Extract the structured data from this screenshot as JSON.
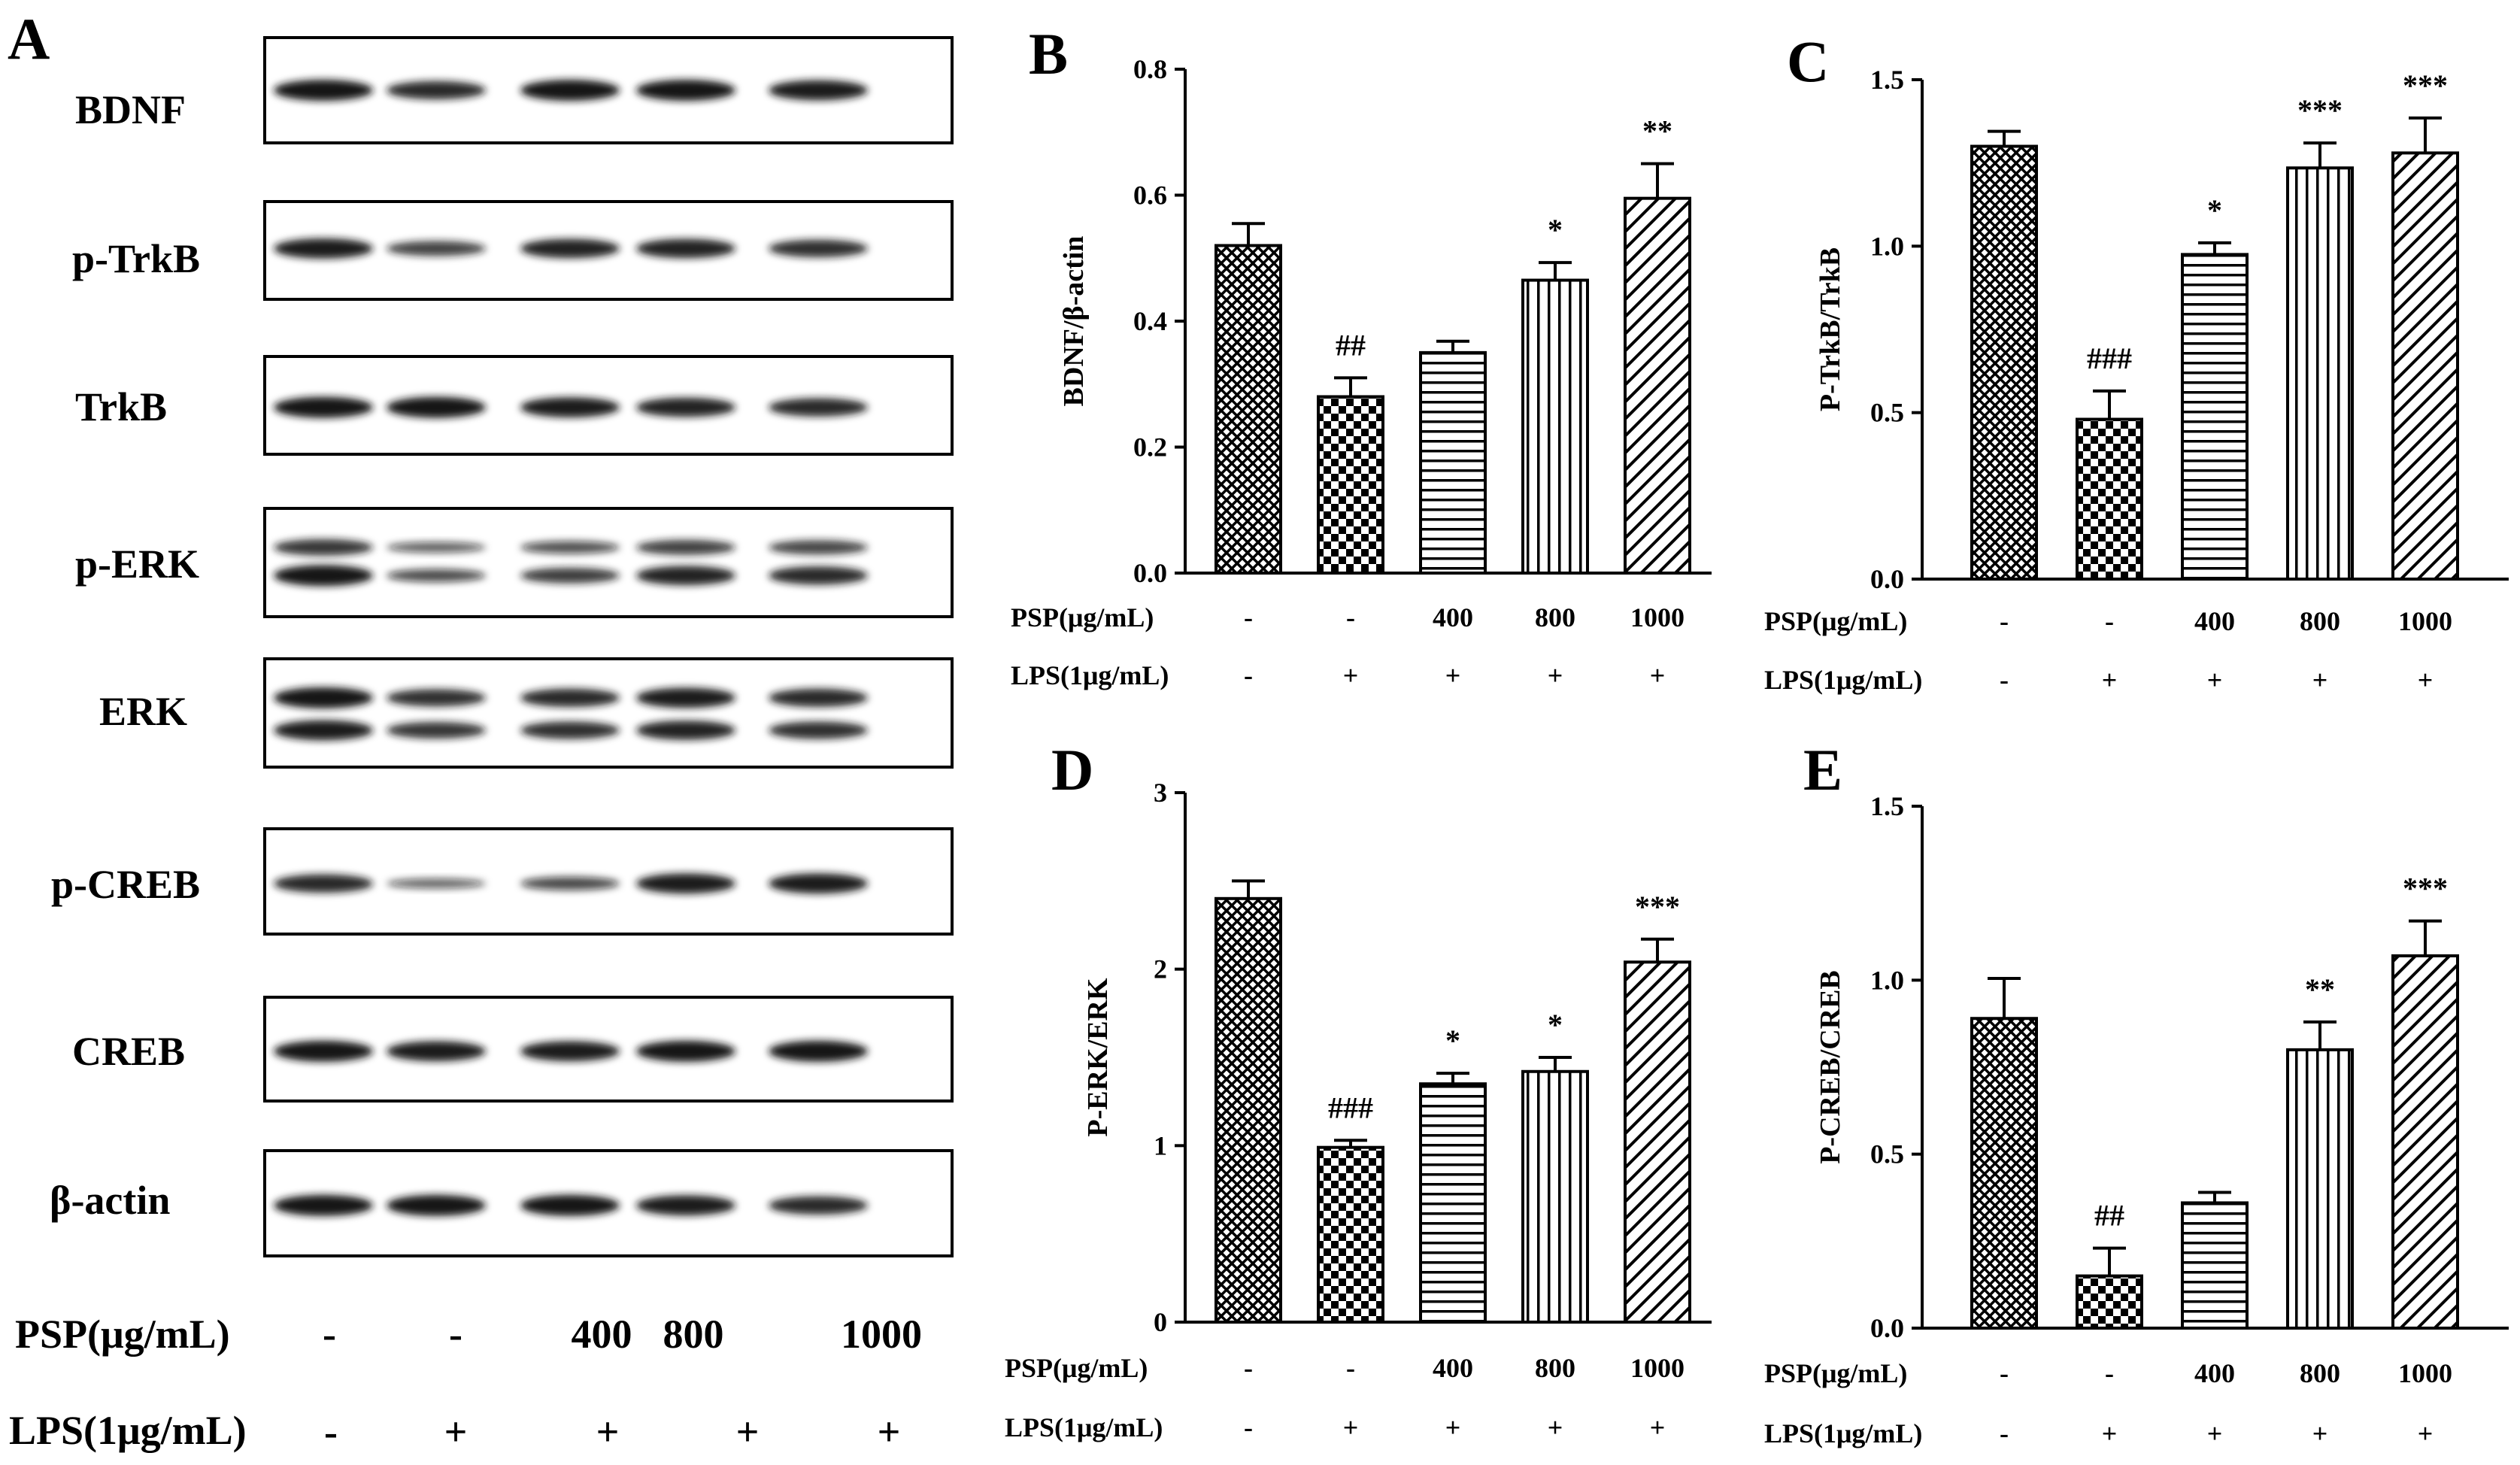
{
  "panel_a": {
    "letter": "A",
    "bands": [
      "BDNF",
      "p-TrkB",
      "TrkB",
      "p-ERK",
      "ERK",
      "p-CREB",
      "CREB",
      "β-actin"
    ],
    "psp_label": "PSP(μg/mL)",
    "lps_label": "LPS(1μg/mL)",
    "psp_values": [
      "-",
      "-",
      "400",
      "800",
      "1000"
    ],
    "lps_values": [
      "-",
      "+",
      "+",
      "+",
      "+"
    ]
  },
  "colors": {
    "ink": "#000000",
    "band": "#151515",
    "background": "#ffffff"
  },
  "chart_data": [
    {
      "panel": "B",
      "type": "bar",
      "ylabel": "BDNF/β-actin",
      "ylim": [
        0,
        0.8
      ],
      "yticks": [
        "0.0",
        "0.2",
        "0.4",
        "0.6",
        "0.8"
      ],
      "tick_values": [
        0,
        0.2,
        0.4,
        0.6,
        0.8
      ],
      "values": [
        0.52,
        0.28,
        0.35,
        0.465,
        0.595
      ],
      "errors": [
        0.035,
        0.03,
        0.018,
        0.028,
        0.055
      ],
      "significance": [
        "",
        "##",
        "",
        "*",
        "**"
      ],
      "patterns": [
        "cross",
        "checker",
        "hlines",
        "vlines",
        "diag"
      ],
      "psp_label": "PSP(μg/mL)",
      "lps_label": "LPS(1μg/mL)",
      "psp_values": [
        "-",
        "-",
        "400",
        "800",
        "1000"
      ],
      "lps_values": [
        "-",
        "+",
        "+",
        "+",
        "+"
      ]
    },
    {
      "panel": "C",
      "type": "bar",
      "ylabel": "P-TrkB/TrkB",
      "ylim": [
        0,
        1.5
      ],
      "yticks": [
        "0.0",
        "0.5",
        "1.0",
        "1.5"
      ],
      "tick_values": [
        0,
        0.5,
        1.0,
        1.5
      ],
      "values": [
        1.3,
        0.48,
        0.975,
        1.235,
        1.28
      ],
      "errors": [
        0.045,
        0.085,
        0.035,
        0.075,
        0.105
      ],
      "significance": [
        "",
        "###",
        "*",
        "***",
        "***"
      ],
      "patterns": [
        "cross",
        "checker",
        "hlines",
        "vlines",
        "diag"
      ],
      "psp_label": "PSP(μg/mL)",
      "lps_label": "LPS(1μg/mL)",
      "psp_values": [
        "-",
        "-",
        "400",
        "800",
        "1000"
      ],
      "lps_values": [
        "-",
        "+",
        "+",
        "+",
        "+"
      ]
    },
    {
      "panel": "D",
      "type": "bar",
      "ylabel": "P-ERK/ERK",
      "ylim": [
        0,
        3
      ],
      "yticks": [
        "0",
        "1",
        "2",
        "3"
      ],
      "tick_values": [
        0,
        1,
        2,
        3
      ],
      "values": [
        2.4,
        0.99,
        1.35,
        1.42,
        2.04
      ],
      "errors": [
        0.1,
        0.04,
        0.06,
        0.08,
        0.13
      ],
      "significance": [
        "",
        "###",
        "*",
        "*",
        "***"
      ],
      "patterns": [
        "cross",
        "checker",
        "hlines",
        "vlines",
        "diag"
      ],
      "psp_label": "PSP(μg/mL)",
      "lps_label": "LPS(1μg/mL)",
      "psp_values": [
        "-",
        "-",
        "400",
        "800",
        "1000"
      ],
      "lps_values": [
        "-",
        "+",
        "+",
        "+",
        "+"
      ]
    },
    {
      "panel": "E",
      "type": "bar",
      "ylabel": "P-CREB/CREB",
      "ylim": [
        0,
        1.5
      ],
      "yticks": [
        "0.0",
        "0.5",
        "1.0",
        "1.5"
      ],
      "tick_values": [
        0,
        0.5,
        1.0,
        1.5
      ],
      "values": [
        0.89,
        0.15,
        0.36,
        0.8,
        1.07
      ],
      "errors": [
        0.115,
        0.08,
        0.03,
        0.08,
        0.1
      ],
      "significance": [
        "",
        "##",
        "",
        "**",
        "***"
      ],
      "patterns": [
        "cross",
        "checker",
        "hlines",
        "vlines",
        "diag"
      ],
      "psp_label": "PSP(μg/mL)",
      "lps_label": "LPS(1μg/mL)",
      "psp_values": [
        "-",
        "-",
        "400",
        "800",
        "1000"
      ],
      "lps_values": [
        "-",
        "+",
        "+",
        "+",
        "+"
      ]
    }
  ]
}
